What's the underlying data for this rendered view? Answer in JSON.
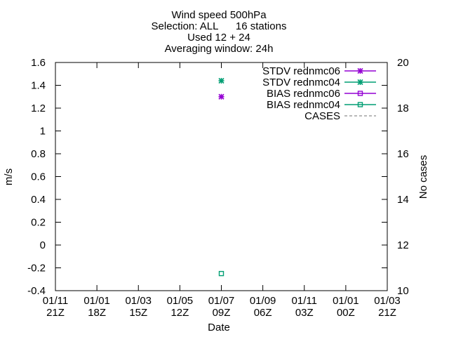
{
  "chart_data": {
    "type": "scatter",
    "title_lines": [
      "Wind speed 500hPa",
      "Selection: ALL      16 stations",
      "Used 12 + 24",
      "Averaging window: 24h"
    ],
    "xlabel": "Date",
    "ylabel": "m/s",
    "y2label": "No cases",
    "ylim": [
      -0.4,
      1.6
    ],
    "y_ticks": [
      "-0.4",
      "-0.2",
      "0",
      "0.2",
      "0.4",
      "0.6",
      "0.8",
      "1",
      "1.2",
      "1.4",
      "1.6"
    ],
    "y2lim": [
      10,
      20
    ],
    "y2_ticks": [
      "10",
      "12",
      "14",
      "16",
      "18",
      "20"
    ],
    "x_ticks": [
      {
        "date": "01/11",
        "hour": "21Z"
      },
      {
        "date": "01/01",
        "hour": "18Z"
      },
      {
        "date": "01/03",
        "hour": "15Z"
      },
      {
        "date": "01/05",
        "hour": "12Z"
      },
      {
        "date": "01/07",
        "hour": "09Z"
      },
      {
        "date": "01/09",
        "hour": "06Z"
      },
      {
        "date": "01/11",
        "hour": "03Z"
      },
      {
        "date": "01/01",
        "hour": "00Z"
      },
      {
        "date": "01/03",
        "hour": "21Z"
      }
    ],
    "grid": false,
    "legend_position": "top-right",
    "series": [
      {
        "name": "STDV rednmc06",
        "color": "#9400d3",
        "marker": "star",
        "line": "solid",
        "points": [
          {
            "x_tick": 4,
            "y": 1.3
          }
        ]
      },
      {
        "name": "STDV rednmc04",
        "color": "#009e73",
        "marker": "star",
        "line": "solid",
        "points": [
          {
            "x_tick": 4,
            "y": 1.44
          }
        ]
      },
      {
        "name": "BIAS rednmc06",
        "color": "#9400d3",
        "marker": "square",
        "line": "solid",
        "points": []
      },
      {
        "name": "BIAS rednmc04",
        "color": "#009e73",
        "marker": "square",
        "line": "solid",
        "points": [
          {
            "x_tick": 4,
            "y": -0.25
          }
        ]
      },
      {
        "name": "CASES",
        "color": "#a0a0a0",
        "marker": "none",
        "line": "dashed",
        "points": []
      }
    ]
  }
}
